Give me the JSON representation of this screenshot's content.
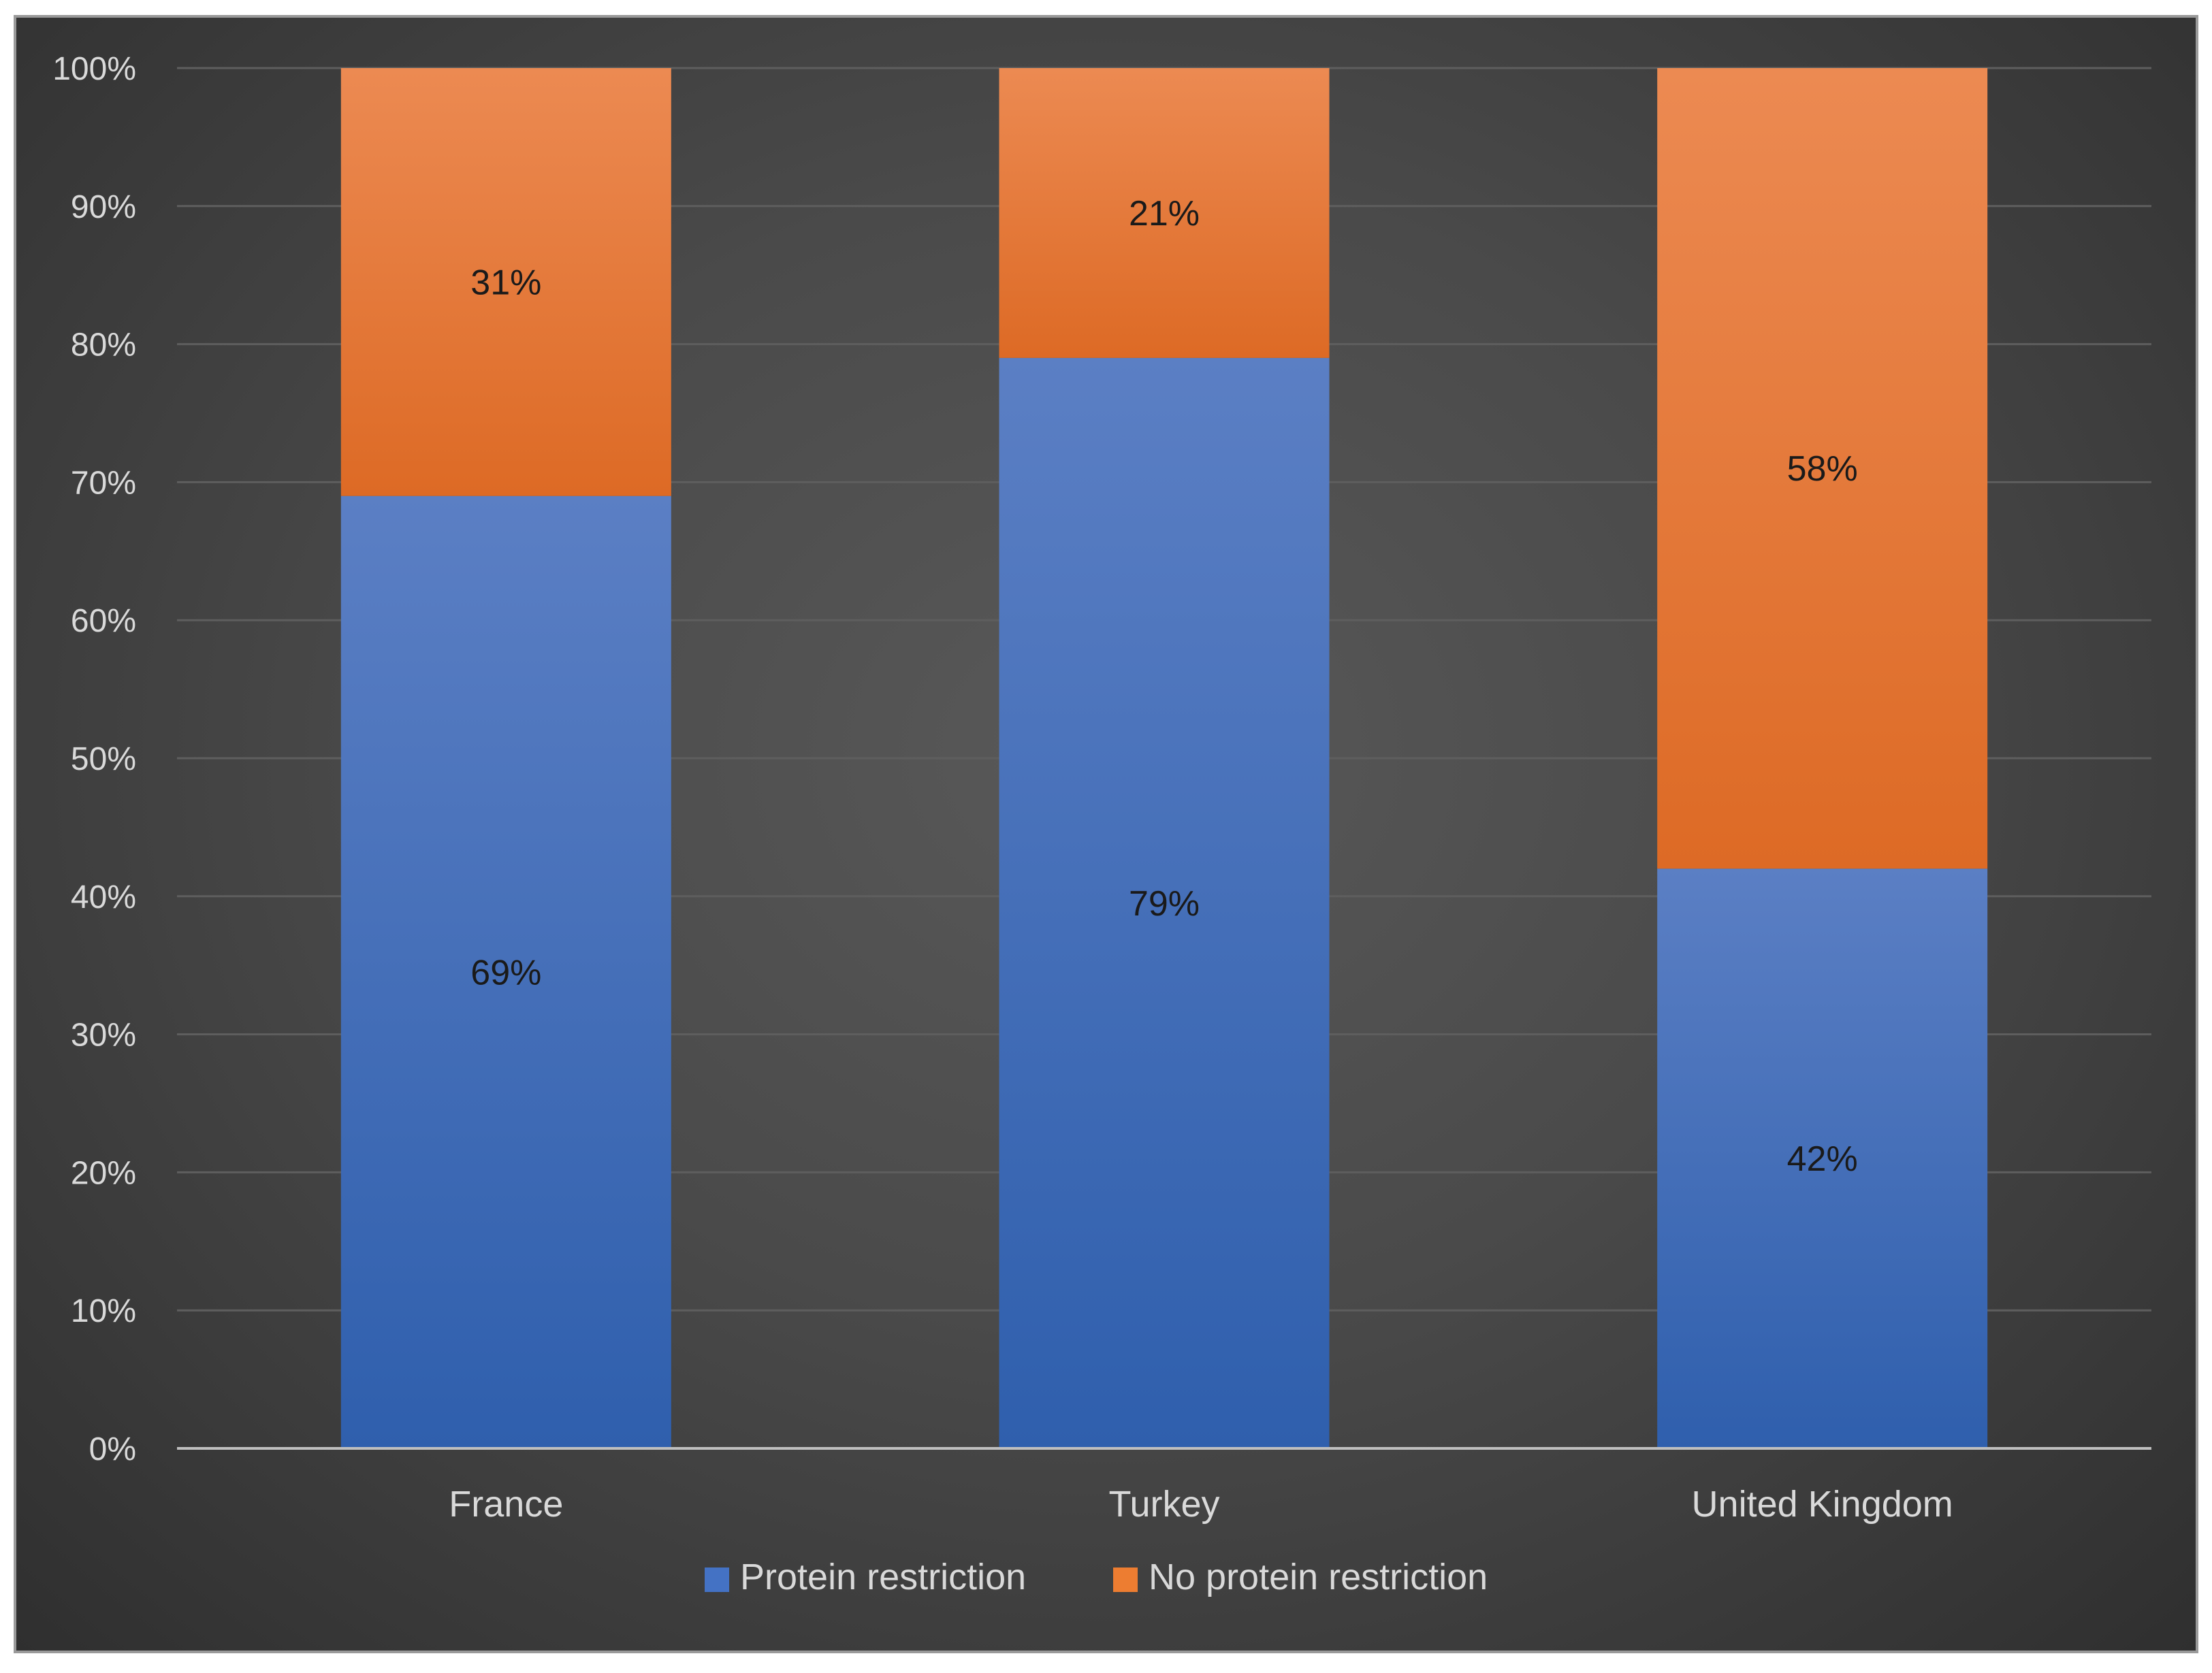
{
  "chart_data": {
    "type": "bar",
    "stacked": true,
    "categories": [
      "France",
      "Turkey",
      "United Kingdom"
    ],
    "series": [
      {
        "name": "Protein restriction",
        "values": [
          69,
          79,
          42
        ],
        "labels": [
          "69%",
          "79%",
          "42%"
        ],
        "color": "#4472c4"
      },
      {
        "name": "No protein restriction",
        "values": [
          31,
          21,
          58
        ],
        "labels": [
          "31%",
          "21%",
          "58%"
        ],
        "color": "#ed7d31"
      }
    ],
    "ylim": [
      0,
      100
    ],
    "yticks": [
      "0%",
      "10%",
      "20%",
      "30%",
      "40%",
      "50%",
      "60%",
      "70%",
      "80%",
      "90%",
      "100%"
    ],
    "grid": true,
    "legend_position": "bottom",
    "colors": {
      "background": "#4a4a4a",
      "text": "#d9d9d9",
      "gridline": "#5e5e5e",
      "axis": "#bfbfbf"
    }
  }
}
